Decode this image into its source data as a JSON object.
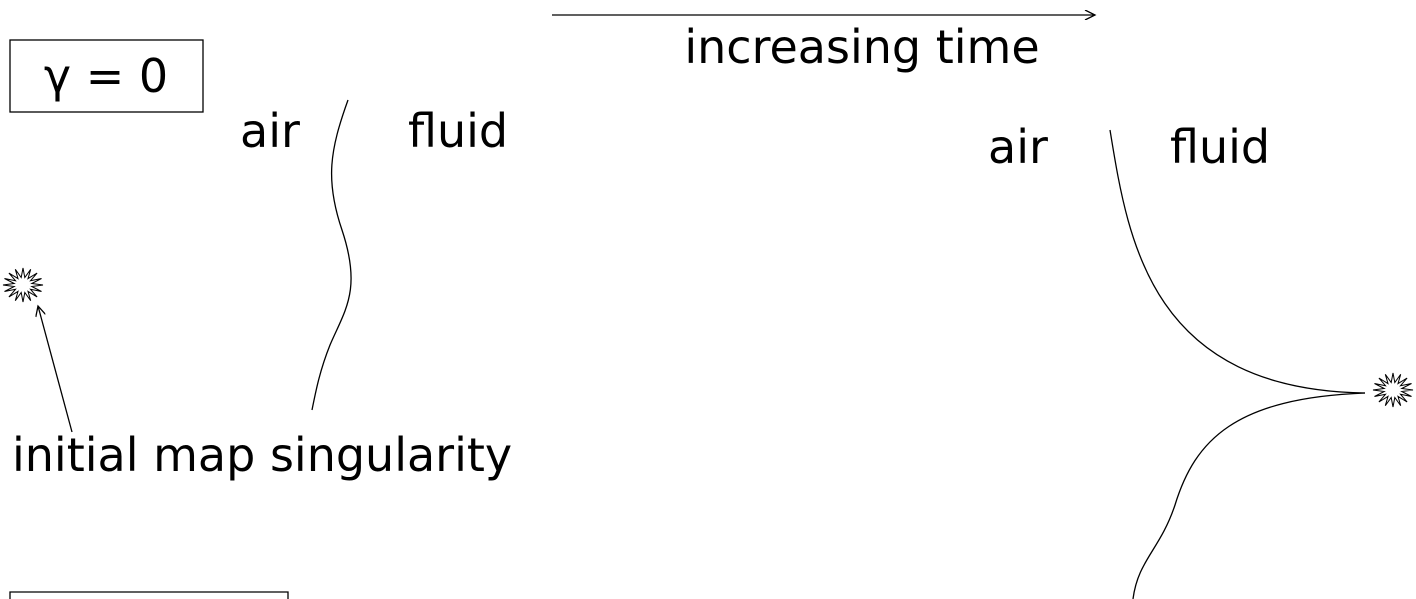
{
  "label_box": "γ = 0",
  "arrow_label": "increasing time",
  "annotation": "initial map singularity",
  "panels": [
    {
      "left": "air",
      "right": "fluid"
    },
    {
      "left": "air",
      "right": "fluid"
    }
  ]
}
